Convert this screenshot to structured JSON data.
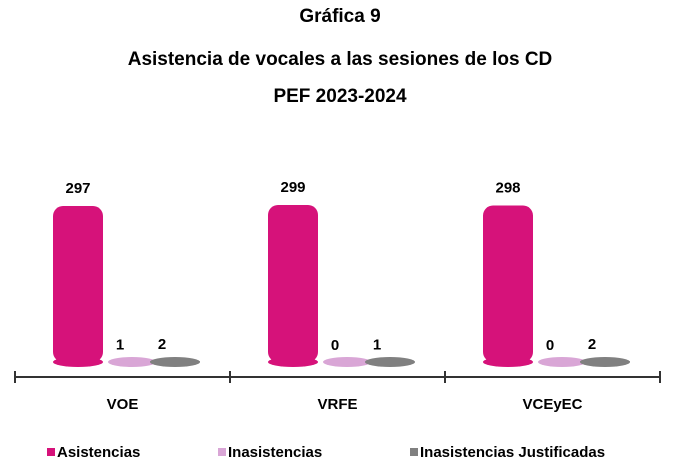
{
  "chart_data": {
    "type": "bar",
    "title": [
      "Gráfica 9",
      "Asistencia de vocales a las sesiones de los CD",
      "PEF 2023-2024"
    ],
    "categories": [
      "VOE",
      "VRFE",
      "VCEyEC"
    ],
    "series": [
      {
        "name": "Asistencias",
        "color": "#d6127a",
        "values": [
          297,
          299,
          298
        ]
      },
      {
        "name": "Inasistencias",
        "color": "#d9a6d6",
        "values": [
          1,
          0,
          0
        ]
      },
      {
        "name": "Inasistencias Justificadas",
        "color": "#808080",
        "values": [
          2,
          1,
          2
        ]
      }
    ],
    "legend": "bottom"
  }
}
